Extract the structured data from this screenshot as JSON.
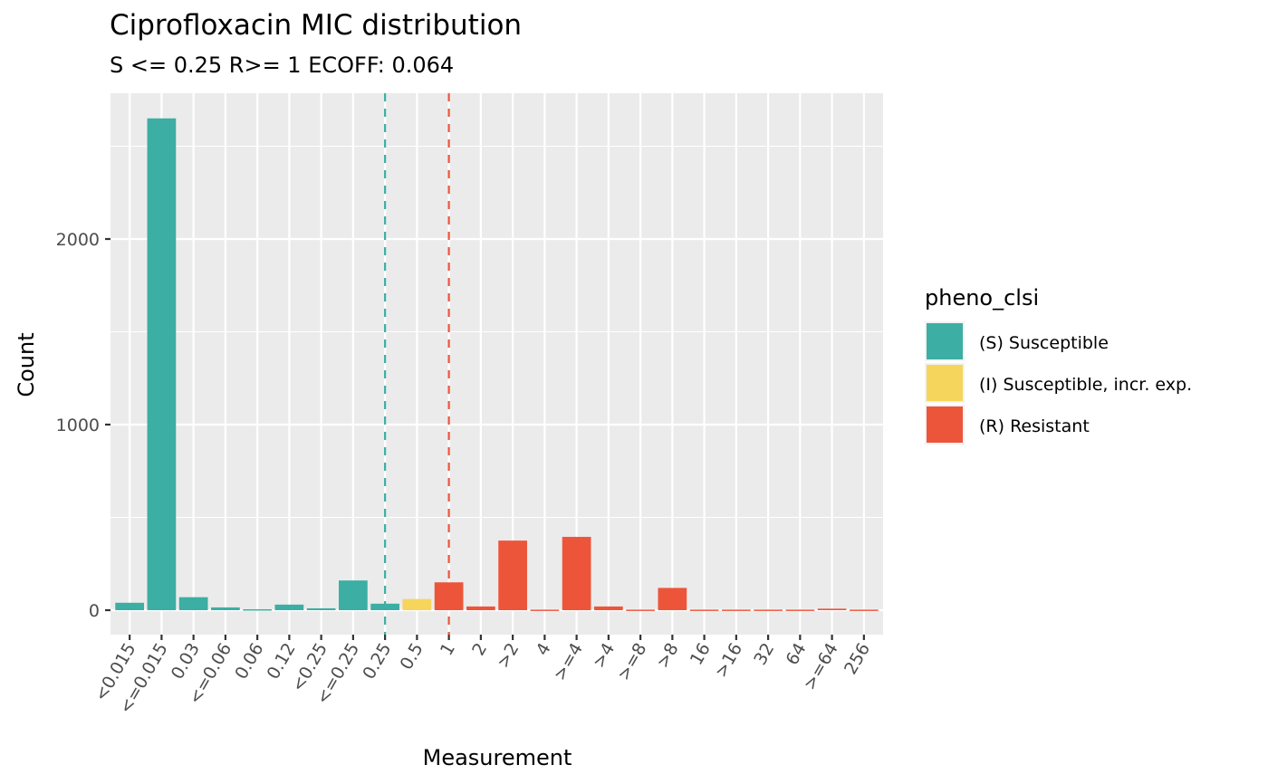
{
  "chart_data": {
    "type": "bar",
    "title": "Ciprofloxacin MIC distribution",
    "subtitle": "S <= 0.25 R>= 1 ECOFF: 0.064",
    "xlabel": "Measurement",
    "ylabel": "Count",
    "ylim": [
      -130,
      2780
    ],
    "yticks": [
      0,
      1000,
      2000
    ],
    "ytick_labels": [
      "0",
      "1000",
      "2000"
    ],
    "grid": true,
    "categories": [
      "<0.015",
      "<=0.015",
      "0.03",
      "<=0.06",
      "0.06",
      "0.12",
      "<0.25",
      "<=0.25",
      "0.25",
      "0.5",
      "1",
      "2",
      ">2",
      "4",
      ">=4",
      ">4",
      ">=8",
      ">8",
      "16",
      ">16",
      "32",
      "64",
      ">=64",
      "256"
    ],
    "values": [
      40,
      2650,
      70,
      15,
      5,
      30,
      10,
      160,
      35,
      60,
      150,
      20,
      375,
      3,
      395,
      20,
      3,
      120,
      3,
      3,
      3,
      3,
      8,
      3
    ],
    "classes": [
      "S",
      "S",
      "S",
      "S",
      "S",
      "S",
      "S",
      "S",
      "S",
      "I",
      "R",
      "R",
      "R",
      "R",
      "R",
      "R",
      "R",
      "R",
      "R",
      "R",
      "R",
      "R",
      "R",
      "R"
    ],
    "reference_lines": [
      {
        "category": "0.25",
        "class": "S",
        "style": "dashed"
      },
      {
        "category": "1",
        "class": "R",
        "style": "dashed"
      }
    ],
    "legend": {
      "title": "pheno_clsi",
      "placement": "right",
      "entries": [
        {
          "key": "S",
          "label": "(S) Susceptible",
          "color": "#3CAEA3"
        },
        {
          "key": "I",
          "label": "(I) Susceptible, incr. exp.",
          "color": "#F6D55C"
        },
        {
          "key": "R",
          "label": "(R) Resistant",
          "color": "#ED553B"
        }
      ]
    },
    "colors": {
      "panel": "#EBEBEB",
      "grid": "#FFFFFF",
      "axis_text": "#4D4D4D"
    }
  }
}
